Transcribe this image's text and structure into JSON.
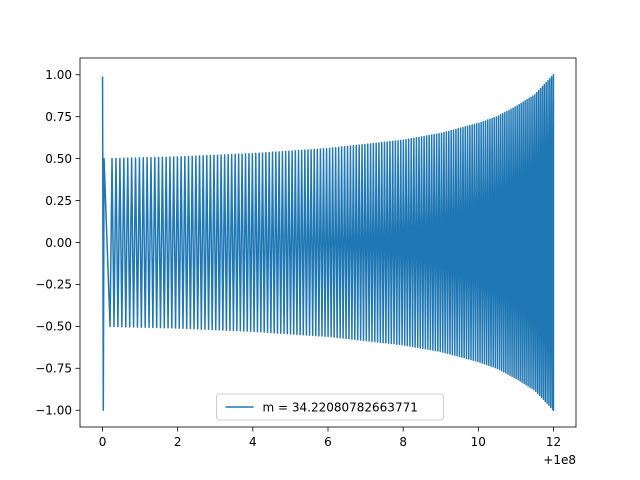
{
  "chart_data": {
    "type": "line",
    "title": "",
    "xlabel": "",
    "ylabel": "",
    "x_offset_label": "+1e8",
    "xlim": [
      -0.6,
      12.6
    ],
    "ylim": [
      -1.1,
      1.1
    ],
    "x_ticks": [
      0,
      2,
      4,
      6,
      8,
      10,
      12
    ],
    "y_ticks": [
      -1.0,
      -0.75,
      -0.5,
      -0.25,
      0.0,
      0.25,
      0.5,
      0.75,
      1.0
    ],
    "x_tick_labels": [
      "0",
      "2",
      "4",
      "6",
      "8",
      "10",
      "12"
    ],
    "y_tick_labels": [
      "−1.00",
      "−0.75",
      "−0.50",
      "−0.25",
      "0.00",
      "0.25",
      "0.50",
      "0.75",
      "1.00"
    ],
    "grid": false,
    "legend_position": "bottom-center",
    "series": [
      {
        "name": "m = 34.22080782663771",
        "color": "#1f77b4",
        "x_range": [
          0,
          12
        ],
        "initial_value": 0.99,
        "initial_min": -1.0,
        "envelope": {
          "x": [
            0.1,
            2,
            4,
            6,
            8,
            9,
            10,
            10.5,
            11,
            11.5,
            12
          ],
          "amplitude": [
            0.5,
            0.51,
            0.53,
            0.56,
            0.61,
            0.65,
            0.71,
            0.75,
            0.81,
            0.88,
            1.0
          ]
        },
        "cycles_start": 0.2,
        "cycles_end": 12.0,
        "cycle_spacing_start": 0.105,
        "cycle_spacing_end": 0.048
      }
    ]
  }
}
